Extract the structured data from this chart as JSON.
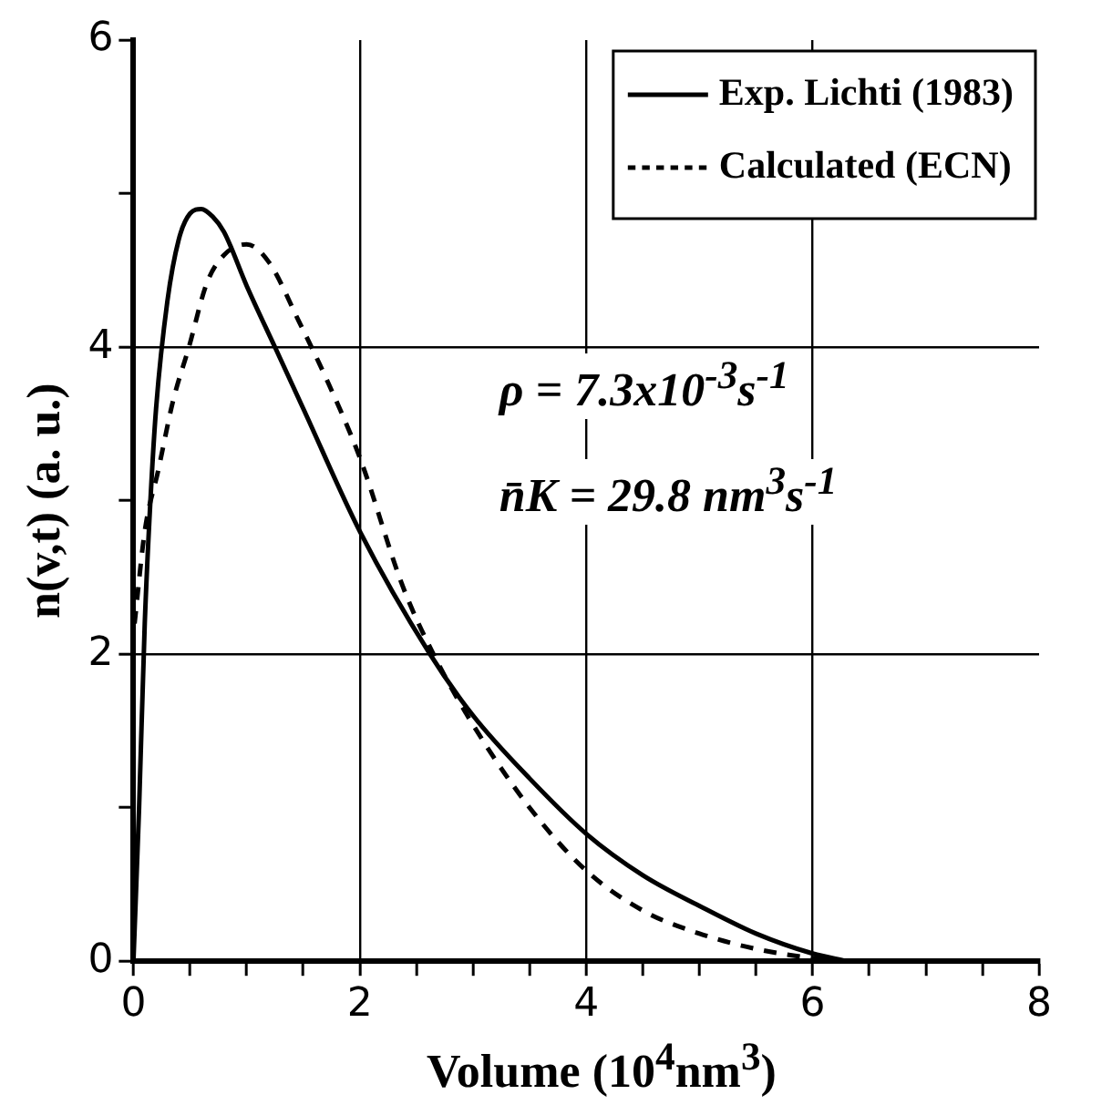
{
  "chart_data": {
    "type": "line",
    "xlabel": "Volume (10$^{4}$nm$^{3}$)",
    "ylabel": "n(v,t) (a. u.)",
    "xlim": [
      0,
      8
    ],
    "xticks": [
      0,
      {
        "value": 0.5,
        "label": null
      },
      {
        "value": 1,
        "label": null
      },
      {
        "value": 1.5,
        "label": null
      },
      2,
      {
        "value": 2.5,
        "label": null
      },
      {
        "value": 3,
        "label": null
      },
      {
        "value": 3.5,
        "label": null
      },
      4,
      {
        "value": 4.5,
        "label": null
      },
      {
        "value": 5,
        "label": null
      },
      {
        "value": 5.5,
        "label": null
      },
      6,
      {
        "value": 6.5,
        "label": null
      },
      {
        "value": 7,
        "label": null
      },
      {
        "value": 7.5,
        "label": null
      },
      8
    ],
    "ylim": [
      0,
      6
    ],
    "yticks": [
      0,
      {
        "value": 1,
        "label": null
      },
      2,
      {
        "value": 3,
        "label": null
      },
      4,
      {
        "value": 5,
        "label": null
      },
      6
    ],
    "grid": true,
    "legend": "top right",
    "marker": "none",
    "series": [
      {
        "name": "Exp. Lichti (1983)",
        "color": "#000000",
        "line_style": "solid",
        "x": [
          0,
          0.05,
          0.1,
          0.15,
          0.2,
          0.3,
          0.4,
          0.5,
          0.6,
          0.7,
          0.8,
          1.0,
          1.25,
          1.5,
          2.0,
          2.62,
          3.0,
          3.5,
          4.0,
          4.5,
          5.0,
          5.5,
          6.0,
          6.3
        ],
        "values": [
          0,
          1.0,
          2.2,
          3.0,
          3.6,
          4.3,
          4.7,
          4.87,
          4.9,
          4.85,
          4.75,
          4.4,
          4.0,
          3.6,
          2.8,
          2.0,
          1.6,
          1.19,
          0.83,
          0.56,
          0.36,
          0.18,
          0.05,
          0
        ]
      },
      {
        "name": "Calculated (ECN)",
        "color": "#000000",
        "line_style": "dashed",
        "x": [
          0.01,
          0.1,
          0.22,
          0.35,
          0.49,
          0.65,
          0.8,
          1.0,
          1.2,
          1.46,
          1.7,
          2.0,
          2.38,
          2.65,
          3.0,
          3.5,
          4.0,
          4.5,
          5.0,
          5.5,
          6.0,
          6.3
        ],
        "values": [
          2.2,
          2.8,
          3.2,
          3.65,
          4.0,
          4.42,
          4.6,
          4.67,
          4.55,
          4.17,
          3.8,
          3.28,
          2.44,
          2.0,
          1.54,
          1.0,
          0.59,
          0.33,
          0.18,
          0.08,
          0.02,
          0
        ]
      }
    ],
    "annotations": [
      "ρ = 7.3x10$^{-3}$s$^{-1}$",
      "n̄K = 29.8 nm$^{3}$s$^{-1}$"
    ]
  }
}
